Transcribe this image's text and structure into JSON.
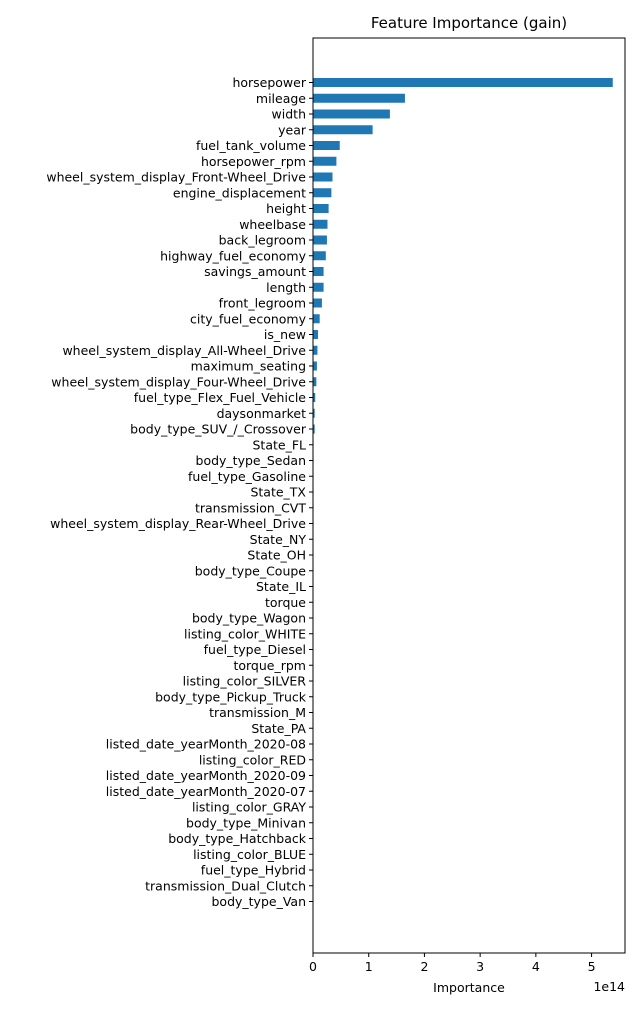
{
  "chart_data": {
    "type": "bar",
    "orientation": "horizontal",
    "title": "Feature Importance (gain)",
    "xlabel": "Importance",
    "ylabel": "",
    "x_scale_label": "1e14",
    "x_ticks": [
      0,
      1,
      2,
      3,
      4,
      5
    ],
    "xlim": [
      0,
      5.6
    ],
    "grid": false,
    "bar_color": "#1f77b4",
    "categories": [
      "horsepower",
      "mileage",
      "width",
      "year",
      "fuel_tank_volume",
      "horsepower_rpm",
      "wheel_system_display_Front-Wheel_Drive",
      "engine_displacement",
      "height",
      "wheelbase",
      "back_legroom",
      "highway_fuel_economy",
      "savings_amount",
      "length",
      "front_legroom",
      "city_fuel_economy",
      "is_new",
      "wheel_system_display_All-Wheel_Drive",
      "maximum_seating",
      "wheel_system_display_Four-Wheel_Drive",
      "fuel_type_Flex_Fuel_Vehicle",
      "daysonmarket",
      "body_type_SUV_/_Crossover",
      "State_FL",
      "body_type_Sedan",
      "fuel_type_Gasoline",
      "State_TX",
      "transmission_CVT",
      "wheel_system_display_Rear-Wheel_Drive",
      "State_NY",
      "State_OH",
      "body_type_Coupe",
      "State_IL",
      "torque",
      "body_type_Wagon",
      "listing_color_WHITE",
      "fuel_type_Diesel",
      "torque_rpm",
      "listing_color_SILVER",
      "body_type_Pickup_Truck",
      "transmission_M",
      "State_PA",
      "listed_date_yearMonth_2020-08",
      "listing_color_RED",
      "listed_date_yearMonth_2020-09",
      "listed_date_yearMonth_2020-07",
      "listing_color_GRAY",
      "body_type_Minivan",
      "body_type_Hatchback",
      "listing_color_BLUE",
      "fuel_type_Hybrid",
      "transmission_Dual_Clutch",
      "body_type_Van"
    ],
    "values": [
      5.38,
      1.65,
      1.38,
      1.07,
      0.48,
      0.42,
      0.35,
      0.33,
      0.28,
      0.26,
      0.25,
      0.23,
      0.19,
      0.19,
      0.16,
      0.12,
      0.09,
      0.08,
      0.07,
      0.06,
      0.04,
      0.03,
      0.03,
      0.01,
      0.01,
      0.01,
      0.01,
      0.01,
      0.01,
      0.0,
      0.0,
      0.0,
      0.0,
      0.0,
      0.0,
      0.0,
      0.0,
      0.0,
      0.0,
      0.0,
      0.0,
      0.0,
      0.0,
      0.0,
      0.0,
      0.0,
      0.0,
      0.0,
      0.0,
      0.0,
      0.0,
      0.0,
      0.0
    ]
  }
}
